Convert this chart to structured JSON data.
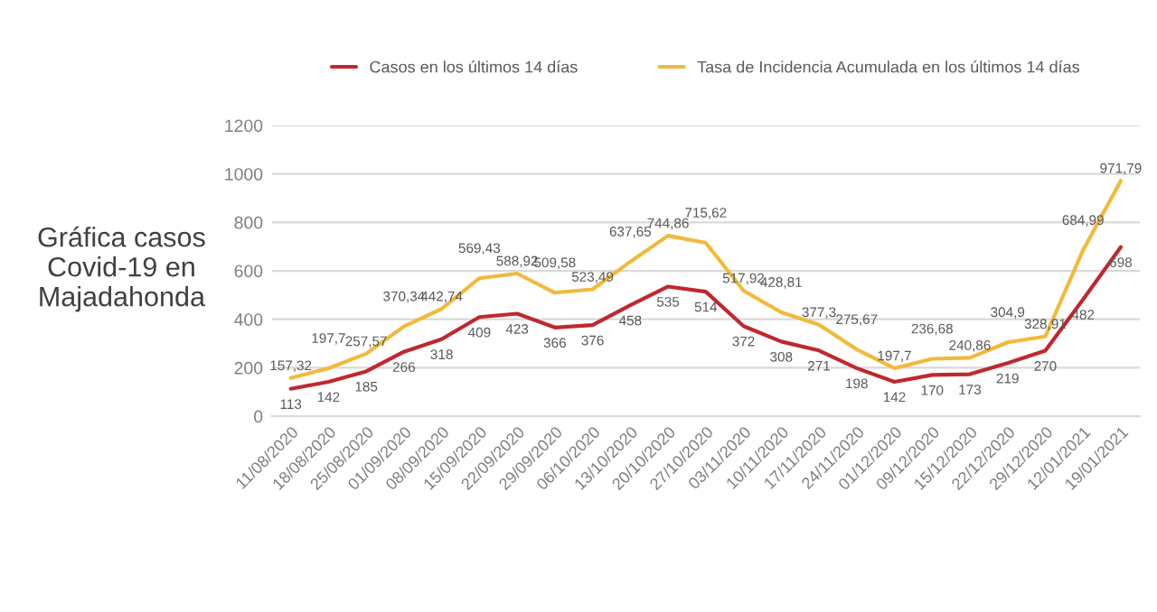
{
  "chart_data": {
    "type": "line",
    "title": "Gráfica casos Covid-19 en Majadahonda",
    "categories": [
      "11/08/2020",
      "18/08/2020",
      "25/08/2020",
      "01/09/2020",
      "08/09/2020",
      "15/09/2020",
      "22/09/2020",
      "29/09/2020",
      "06/10/2020",
      "13/10/2020",
      "20/10/2020",
      "27/10/2020",
      "03/11/2020",
      "10/11/2020",
      "17/11/2020",
      "24/11/2020",
      "01/12/2020",
      "09/12/2020",
      "15/12/2020",
      "22/12/2020",
      "29/12/2020",
      "12/01/2021",
      "19/01/2021"
    ],
    "series": [
      {
        "name": "Casos en los últimos 14 días",
        "color": "#c0282d",
        "values": [
          113,
          142,
          185,
          266,
          318,
          409,
          423,
          366,
          376,
          458,
          535,
          514,
          372,
          308,
          271,
          198,
          142,
          170,
          173,
          219,
          270,
          482,
          698
        ],
        "value_labels": [
          "113",
          "142",
          "185",
          "266",
          "318",
          "409",
          "423",
          "366",
          "376",
          "458",
          "535",
          "514",
          "372",
          "308",
          "271",
          "198",
          "142",
          "170",
          "173",
          "219",
          "270",
          "482",
          "698"
        ]
      },
      {
        "name": "Tasa de Incidencia Acumulada en los últimos 14 días",
        "color": "#f2b93b",
        "values": [
          157.32,
          197.7,
          257.57,
          370.34,
          442.74,
          569.43,
          588.92,
          509.58,
          523.49,
          637.65,
          744.86,
          715.62,
          517.92,
          428.81,
          377.3,
          275.67,
          197.7,
          236.68,
          240.86,
          304.9,
          328.91,
          684.99,
          971.79
        ],
        "value_labels": [
          "157,32",
          "197,7",
          "257,57",
          "370,34",
          "442,74",
          "569,43",
          "588,92",
          "509,58",
          "523,49",
          "637,65",
          "744,86",
          "715,62",
          "517,92",
          "428,81",
          "377,3",
          "275,67",
          "197,7",
          "236,68",
          "240,86",
          "304,9",
          "328,91",
          "684,99",
          "971,79"
        ]
      }
    ],
    "ylim": [
      0,
      1200
    ],
    "yticks": [
      0,
      200,
      400,
      600,
      800,
      1000,
      1200
    ],
    "grid": "y",
    "legend": "top",
    "marker": "none",
    "line_style": "solid"
  }
}
